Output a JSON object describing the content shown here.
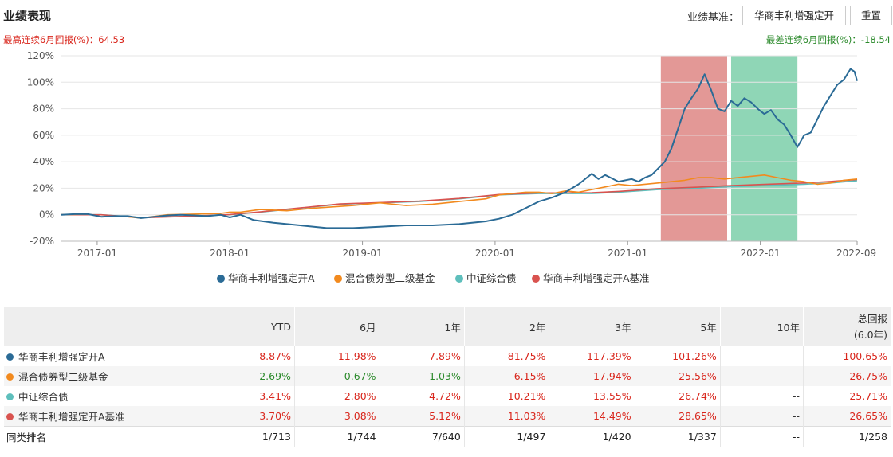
{
  "header": {
    "title": "业绩表现",
    "benchmark_label": "业绩基准：",
    "benchmark_value": "华商丰利增强定开",
    "reset_label": "重置"
  },
  "stats": {
    "best": "最高连续6月回报(%)：64.53",
    "worst": "最差连续6月回报(%)：-18.54"
  },
  "colors": {
    "fund": "#2b6b96",
    "category": "#f28a1e",
    "index": "#5ebfbc",
    "benchmark": "#d9534f",
    "best_band": "#e39896",
    "worst_band": "#8fd6b6",
    "positive": "#d9261c",
    "negative": "#2b8a2b"
  },
  "chart_data": {
    "type": "line",
    "x_tick_labels": [
      "2017-01",
      "2018-01",
      "2019-01",
      "2020-01",
      "2021-01",
      "2022-01",
      "2022-09"
    ],
    "y_tick_labels": [
      "120%",
      "100%",
      "80%",
      "60%",
      "40%",
      "20%",
      "0%",
      "-20%"
    ],
    "ylim": [
      -20,
      120
    ],
    "x_unit": "years since fund start",
    "xlim": [
      0,
      6.0
    ],
    "x_ticks": [
      0.27,
      1.27,
      2.27,
      3.27,
      4.27,
      5.27,
      6.0
    ],
    "grid": true,
    "legend_position": "bottom",
    "highlight_bands": [
      {
        "name": "最高连续6月回报",
        "x": [
          4.52,
          5.02
        ]
      },
      {
        "name": "最差连续6月回报",
        "x": [
          5.05,
          5.55
        ]
      }
    ],
    "series": [
      {
        "name": "华商丰利增强定开A",
        "color_key": "fund",
        "x": [
          0,
          0.1,
          0.2,
          0.3,
          0.4,
          0.5,
          0.6,
          0.7,
          0.8,
          0.9,
          1.0,
          1.1,
          1.2,
          1.27,
          1.35,
          1.45,
          1.6,
          1.8,
          2.0,
          2.2,
          2.4,
          2.6,
          2.8,
          3.0,
          3.2,
          3.3,
          3.4,
          3.5,
          3.6,
          3.7,
          3.8,
          3.9,
          4.0,
          4.05,
          4.1,
          4.2,
          4.3,
          4.35,
          4.4,
          4.45,
          4.5,
          4.55,
          4.6,
          4.65,
          4.7,
          4.75,
          4.8,
          4.85,
          4.9,
          4.95,
          5.0,
          5.05,
          5.1,
          5.15,
          5.2,
          5.25,
          5.3,
          5.35,
          5.4,
          5.45,
          5.5,
          5.55,
          5.6,
          5.65,
          5.7,
          5.75,
          5.8,
          5.85,
          5.9,
          5.95,
          5.98,
          6.0
        ],
        "values": [
          0,
          0.5,
          0.5,
          -1.5,
          -1.0,
          -1.0,
          -2.5,
          -1.5,
          -0.5,
          0,
          -0.5,
          -1.0,
          0,
          -2.0,
          0,
          -4.0,
          -6.0,
          -8.0,
          -10.0,
          -10.0,
          -9.0,
          -8.0,
          -8.0,
          -7.0,
          -5.0,
          -3.0,
          0,
          5.0,
          10.0,
          13.0,
          17.0,
          23.0,
          31.0,
          27.0,
          30.0,
          25.0,
          27.0,
          25.0,
          28.0,
          30.0,
          35.0,
          40.0,
          50.0,
          65.0,
          80.0,
          88.0,
          95.0,
          106.0,
          94.0,
          80.0,
          78.0,
          86.0,
          82.0,
          88.0,
          85.0,
          80.0,
          76.0,
          79.0,
          72.0,
          68.0,
          60.0,
          51.0,
          60.0,
          62.0,
          72.0,
          82.0,
          90.0,
          98.0,
          102.0,
          110.0,
          108.0,
          101.0
        ]
      },
      {
        "name": "混合债券型二级基金",
        "color_key": "category",
        "x": [
          0,
          0.2,
          0.3,
          0.5,
          0.6,
          0.8,
          1.0,
          1.2,
          1.27,
          1.35,
          1.5,
          1.7,
          1.9,
          2.2,
          2.4,
          2.6,
          2.8,
          3.0,
          3.2,
          3.3,
          3.4,
          3.5,
          3.6,
          3.7,
          3.8,
          3.9,
          4.0,
          4.1,
          4.2,
          4.3,
          4.5,
          4.7,
          4.8,
          4.9,
          5.0,
          5.1,
          5.2,
          5.3,
          5.4,
          5.5,
          5.6,
          5.7,
          5.8,
          5.9,
          6.0
        ],
        "values": [
          0,
          0.5,
          -1.5,
          -1.5,
          -2.5,
          0,
          0.5,
          1.0,
          2.0,
          2.0,
          4.0,
          3.0,
          5.0,
          7.0,
          9.0,
          7.0,
          8.0,
          10.0,
          12.0,
          15.0,
          16.0,
          17.0,
          17.0,
          16.0,
          18.0,
          17.0,
          19.0,
          21.0,
          23.0,
          22.0,
          24.0,
          26.0,
          28.0,
          28.0,
          27.0,
          28.0,
          29.0,
          30.0,
          28.0,
          26.0,
          25.0,
          23.0,
          24.0,
          26.0,
          27.0
        ]
      },
      {
        "name": "中证综合债",
        "color_key": "index",
        "x": [
          0,
          0.3,
          0.6,
          1.0,
          1.27,
          1.5,
          1.8,
          2.1,
          2.4,
          2.7,
          3.0,
          3.3,
          3.6,
          3.8,
          4.0,
          4.2,
          4.5,
          4.8,
          5.0,
          5.3,
          5.6,
          5.8,
          6.0
        ],
        "values": [
          0,
          0,
          -2.0,
          -1.0,
          0,
          2.0,
          5.0,
          8.0,
          9.0,
          10.0,
          12.0,
          15.0,
          16.0,
          16.0,
          16.0,
          17.0,
          19.0,
          20.0,
          21.0,
          22.0,
          23.0,
          24.0,
          25.7
        ]
      },
      {
        "name": "华商丰利增强定开A基准",
        "color_key": "benchmark",
        "x": [
          0,
          0.3,
          0.6,
          1.0,
          1.27,
          1.5,
          1.8,
          2.1,
          2.4,
          2.7,
          3.0,
          3.3,
          3.6,
          3.8,
          4.0,
          4.2,
          4.5,
          4.8,
          5.0,
          5.3,
          5.6,
          5.8,
          6.0
        ],
        "values": [
          0,
          0,
          -2.2,
          -1.0,
          0.2,
          2.2,
          5.2,
          8.2,
          9.2,
          10.3,
          12.3,
          15.3,
          16.5,
          16.5,
          16.6,
          17.6,
          19.7,
          20.8,
          21.8,
          22.9,
          24.0,
          25.1,
          26.65
        ]
      }
    ]
  },
  "table": {
    "headers": [
      "",
      "YTD",
      "6月",
      "1年",
      "2年",
      "3年",
      "5年",
      "10年",
      "总回报"
    ],
    "total_header_sub": "(6.0年)",
    "rows": [
      {
        "name": "华商丰利增强定开A",
        "color_key": "fund",
        "values": [
          "8.87%",
          "11.98%",
          "7.89%",
          "81.75%",
          "117.39%",
          "101.26%",
          "--",
          "100.65%"
        ]
      },
      {
        "name": "混合债券型二级基金",
        "color_key": "category",
        "values": [
          "-2.69%",
          "-0.67%",
          "-1.03%",
          "6.15%",
          "17.94%",
          "25.56%",
          "--",
          "26.75%"
        ]
      },
      {
        "name": "中证综合债",
        "color_key": "index",
        "values": [
          "3.41%",
          "2.80%",
          "4.72%",
          "10.21%",
          "13.55%",
          "26.74%",
          "--",
          "25.71%"
        ]
      },
      {
        "name": "华商丰利增强定开A基准",
        "color_key": "benchmark",
        "values": [
          "3.70%",
          "3.08%",
          "5.12%",
          "11.03%",
          "14.49%",
          "28.65%",
          "--",
          "26.65%"
        ]
      }
    ],
    "rank": {
      "label": "同类排名",
      "values": [
        "1/713",
        "1/744",
        "7/640",
        "1/497",
        "1/420",
        "1/337",
        "--",
        "1/258"
      ]
    }
  }
}
